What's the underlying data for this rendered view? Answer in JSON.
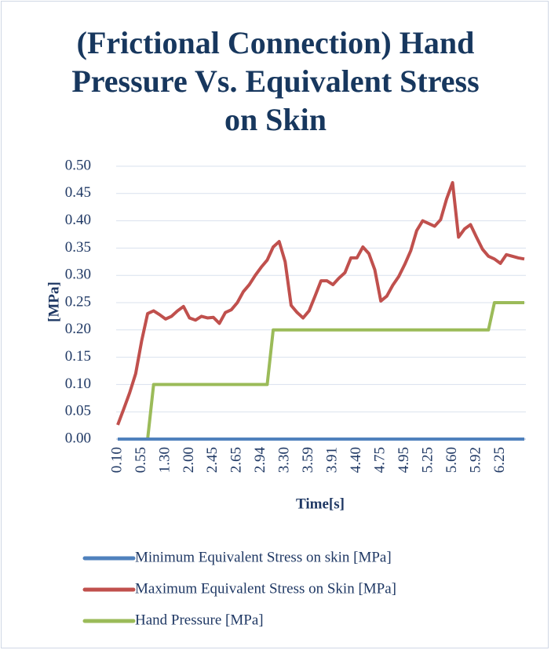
{
  "chart_data": {
    "type": "line",
    "title": "(Frictional Connection) Hand Pressure Vs. Equivalent Stress on Skin",
    "y_label": "[MPa]",
    "x_label": "Time[s]",
    "categories": [
      "0.10",
      null,
      null,
      null,
      "0.55",
      null,
      null,
      null,
      "1.30",
      null,
      null,
      null,
      "2.00",
      null,
      null,
      null,
      "2.45",
      null,
      null,
      null,
      "2.65",
      null,
      null,
      null,
      "2.94",
      null,
      null,
      null,
      "3.30",
      null,
      null,
      null,
      "3.59",
      null,
      null,
      null,
      "3.91",
      null,
      null,
      null,
      "4.40",
      null,
      null,
      null,
      "4.75",
      null,
      null,
      null,
      "4.95",
      null,
      null,
      null,
      "5.25",
      null,
      null,
      null,
      "5.60",
      null,
      null,
      null,
      "5.92",
      null,
      null,
      null,
      "6.25",
      null,
      null,
      null,
      null
    ],
    "series": [
      {
        "name": "Minimum Equivalent Stress on skin [MPa]",
        "color": "#4f81bd",
        "values": [
          0,
          0,
          0,
          0,
          0,
          0,
          0,
          0,
          0,
          0,
          0,
          0,
          0,
          0,
          0,
          0,
          0,
          0,
          0,
          0,
          0,
          0,
          0,
          0,
          0,
          0,
          0,
          0,
          0,
          0,
          0,
          0,
          0,
          0,
          0,
          0,
          0,
          0,
          0,
          0,
          0,
          0,
          0,
          0,
          0,
          0,
          0,
          0,
          0,
          0,
          0,
          0,
          0,
          0,
          0,
          0,
          0,
          0,
          0,
          0,
          0,
          0,
          0,
          0,
          0,
          0,
          0,
          0,
          0
        ]
      },
      {
        "name": "Maximum Equivalent Stress on Skin [MPa]",
        "color": "#c0504d",
        "values": [
          0.026,
          0.055,
          0.085,
          0.12,
          0.18,
          0.23,
          0.235,
          0.228,
          0.22,
          0.225,
          0.235,
          0.243,
          0.222,
          0.218,
          0.225,
          0.222,
          0.223,
          0.212,
          0.232,
          0.237,
          0.25,
          0.27,
          0.283,
          0.3,
          0.315,
          0.328,
          0.352,
          0.362,
          0.325,
          0.245,
          0.232,
          0.222,
          0.235,
          0.262,
          0.29,
          0.29,
          0.283,
          0.295,
          0.305,
          0.332,
          0.332,
          0.352,
          0.34,
          0.31,
          0.253,
          0.262,
          0.282,
          0.298,
          0.32,
          0.345,
          0.382,
          0.4,
          0.395,
          0.39,
          0.402,
          0.44,
          0.47,
          0.37,
          0.385,
          0.393,
          0.37,
          0.348,
          0.335,
          0.33,
          0.322,
          0.338,
          0.335,
          0.332,
          0.33
        ]
      },
      {
        "name": "Hand Pressure [MPa]",
        "color": "#9bbb59",
        "values": [
          0,
          0,
          0,
          0,
          0,
          0,
          0.1,
          0.1,
          0.1,
          0.1,
          0.1,
          0.1,
          0.1,
          0.1,
          0.1,
          0.1,
          0.1,
          0.1,
          0.1,
          0.1,
          0.1,
          0.1,
          0.1,
          0.1,
          0.1,
          0.1,
          0.2,
          0.2,
          0.2,
          0.2,
          0.2,
          0.2,
          0.2,
          0.2,
          0.2,
          0.2,
          0.2,
          0.2,
          0.2,
          0.2,
          0.2,
          0.2,
          0.2,
          0.2,
          0.2,
          0.2,
          0.2,
          0.2,
          0.2,
          0.2,
          0.2,
          0.2,
          0.2,
          0.2,
          0.2,
          0.2,
          0.2,
          0.2,
          0.2,
          0.2,
          0.2,
          0.2,
          0.2,
          0.25,
          0.25,
          0.25,
          0.25,
          0.25,
          0.25
        ]
      }
    ],
    "ylim": [
      0,
      0.5
    ],
    "yticks": [
      {
        "value": 0,
        "label": "0.00"
      },
      0.05,
      {
        "value": 0.1,
        "label": "0.10"
      },
      0.15,
      {
        "value": 0.2,
        "label": "0.20"
      },
      0.25,
      {
        "value": 0.3,
        "label": "0.30"
      },
      0.35,
      {
        "value": 0.4,
        "label": "0.40"
      },
      0.45,
      {
        "value": 0.5,
        "label": "0.50"
      }
    ],
    "grid": true
  }
}
